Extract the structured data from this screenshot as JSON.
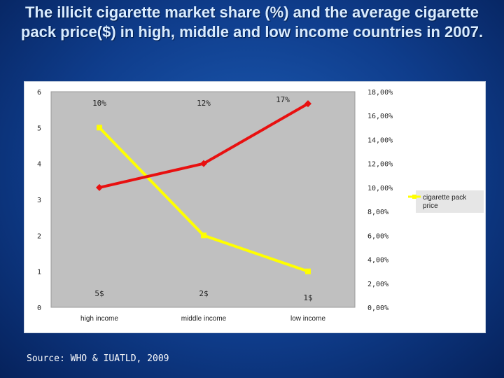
{
  "slide": {
    "title": "The illicit cigarette market share (%) and the average cigarette pack price($) in high, middle and low income countries in 2007.",
    "source": "Source: WHO & IUATLD, 2009"
  },
  "colors": {
    "price_line": "#ffff00",
    "share_line": "#e81010",
    "plot_bg": "#c0c0c0",
    "panel_bg": "#ffffff"
  },
  "chart_data": {
    "type": "line",
    "title": "",
    "categories": [
      "high income",
      "middle income",
      "low income"
    ],
    "y_left": {
      "ticks": [
        "0",
        "1",
        "2",
        "3",
        "4",
        "5",
        "6"
      ],
      "range": [
        0,
        6
      ]
    },
    "y_right": {
      "ticks": [
        "0,00%",
        "2,00%",
        "4,00%",
        "6,00%",
        "8,00%",
        "10,00%",
        "12,00%",
        "14,00%",
        "16,00%",
        "18,00%"
      ],
      "range": [
        0,
        18
      ]
    },
    "series": [
      {
        "name": "cigarette pack price",
        "axis": "left",
        "color": "#ffff00",
        "values": [
          5,
          2,
          1
        ],
        "labels": [
          "5$",
          "2$",
          "1$"
        ]
      },
      {
        "name": "",
        "axis": "right",
        "color": "#e81010",
        "values": [
          10,
          12,
          17
        ],
        "labels": [
          "10%",
          "12%",
          "17%"
        ]
      }
    ],
    "legend": {
      "position": "right",
      "entries": [
        "cigarette pack price"
      ]
    },
    "grid": false
  }
}
